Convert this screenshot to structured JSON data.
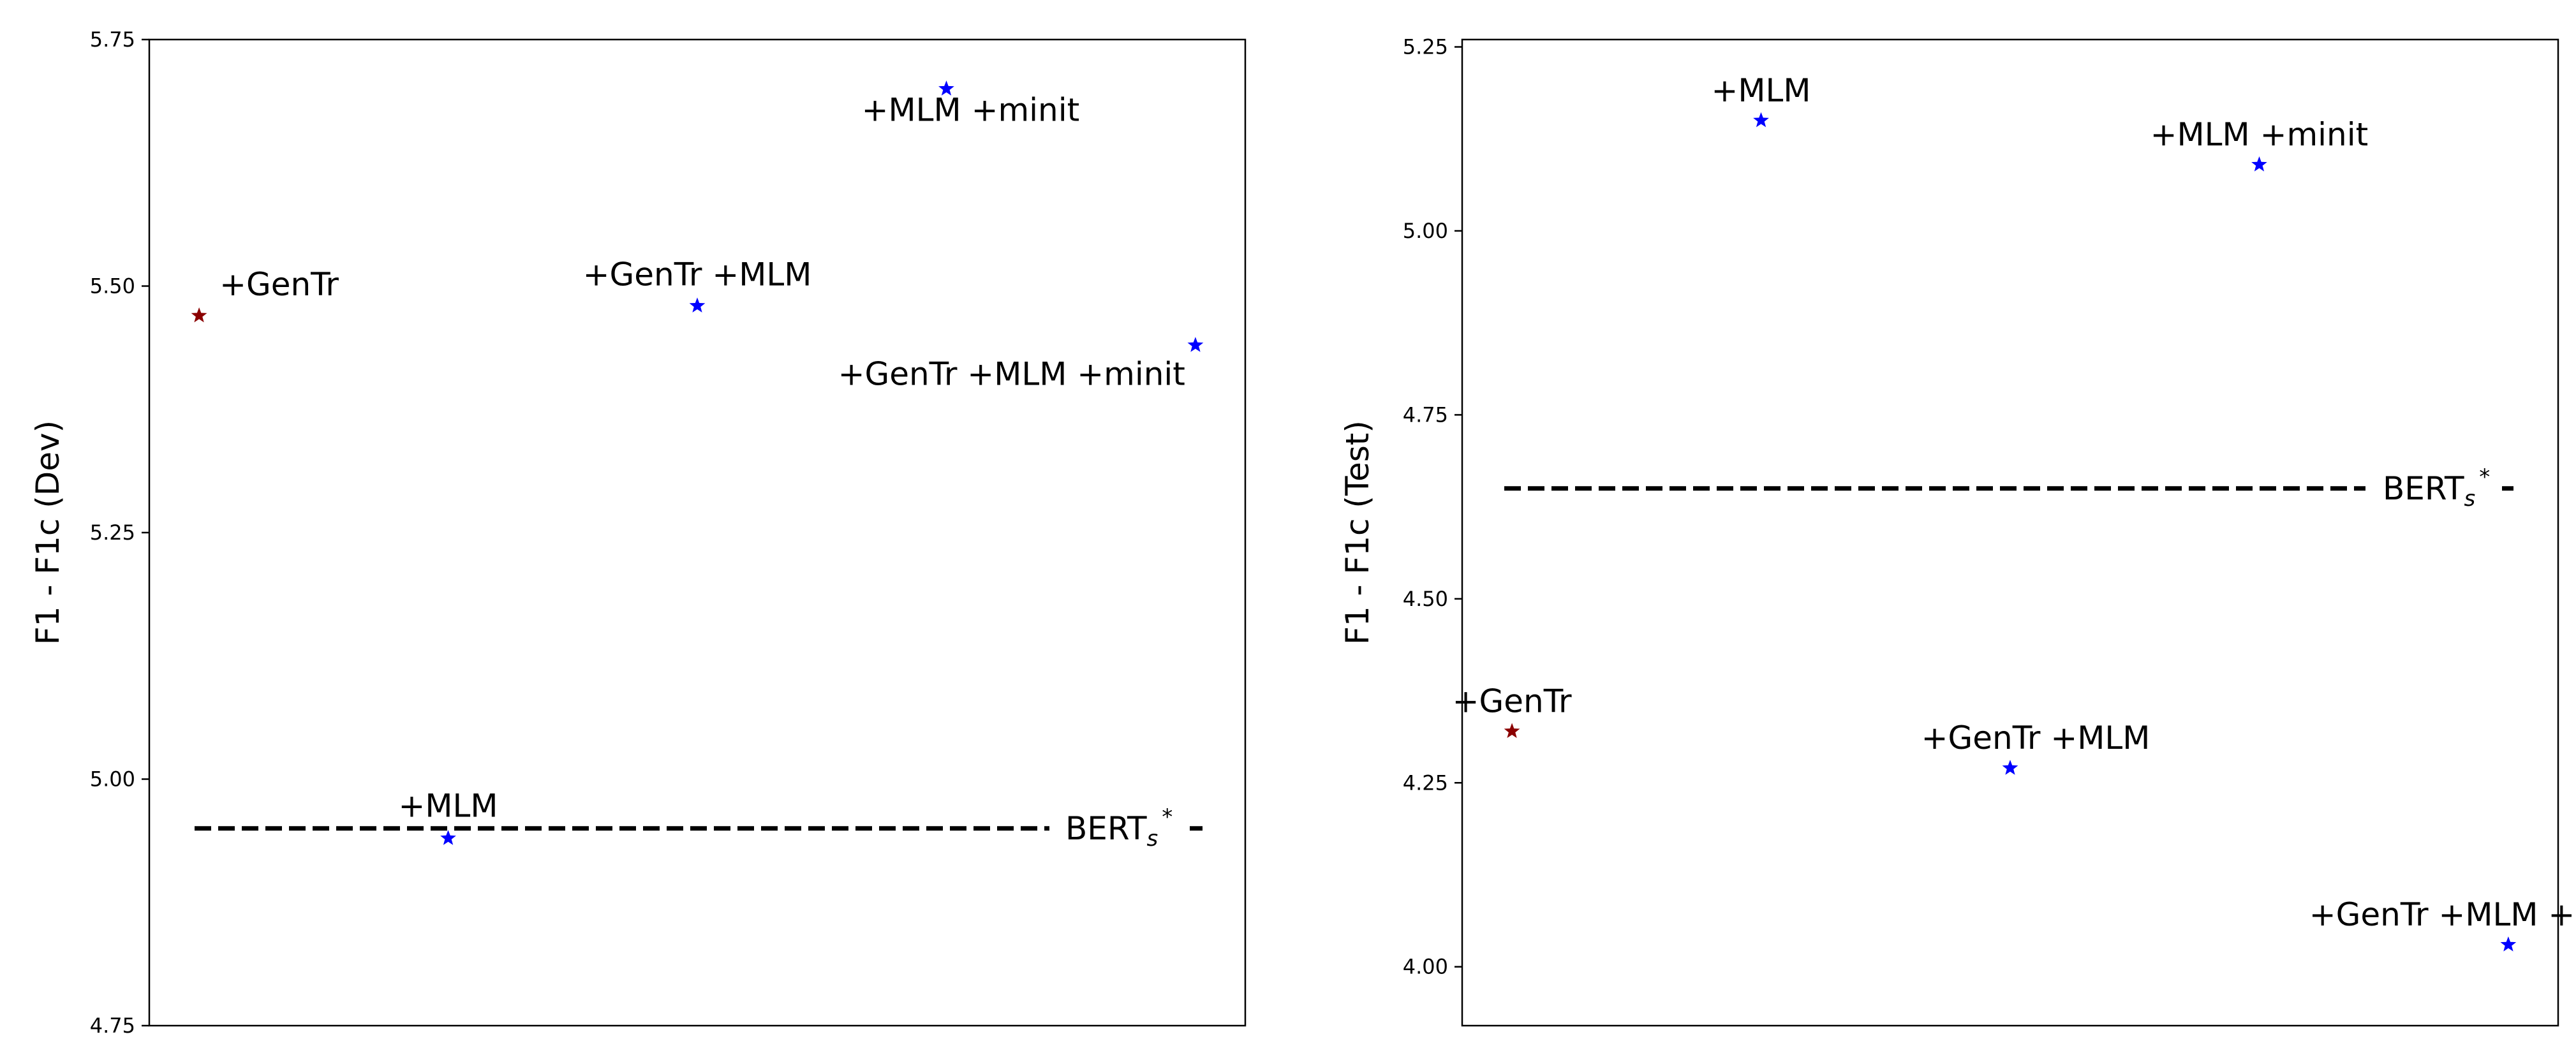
{
  "chart_data": [
    {
      "type": "scatter",
      "ylabel": "F1 - F1c (Dev)",
      "ylim": [
        4.75,
        5.75
      ],
      "xlim": [
        -0.2,
        4.2
      ],
      "yticks": [
        "4.75",
        "5.00",
        "5.25",
        "5.50",
        "5.75"
      ],
      "grid": false,
      "points": [
        {
          "label": "+GenTr",
          "x": 0,
          "y": 5.47,
          "color": "#8b0000"
        },
        {
          "label": "+MLM",
          "x": 1,
          "y": 4.94,
          "color": "#0000ff"
        },
        {
          "label": "+GenTr +MLM",
          "x": 2,
          "y": 5.48,
          "color": "#0000ff"
        },
        {
          "label": "+MLM +minit",
          "x": 3,
          "y": 5.7,
          "color": "#0000ff"
        },
        {
          "label": "+GenTr +MLM +minit",
          "x": 4,
          "y": 5.44,
          "color": "#0000ff"
        }
      ],
      "reference": {
        "label": "BERT",
        "label_sub": "s",
        "label_sup": "*",
        "y": 4.95
      }
    },
    {
      "type": "scatter",
      "ylabel": "F1 - F1c (Test)",
      "ylim": [
        3.92,
        5.26
      ],
      "xlim": [
        -0.2,
        4.2
      ],
      "yticks": [
        "4.00",
        "4.25",
        "4.50",
        "4.75",
        "5.00",
        "5.25"
      ],
      "grid": false,
      "points": [
        {
          "label": "+GenTr",
          "x": 0,
          "y": 4.32,
          "color": "#8b0000"
        },
        {
          "label": "+MLM",
          "x": 1,
          "y": 5.15,
          "color": "#0000ff"
        },
        {
          "label": "+GenTr +MLM",
          "x": 2,
          "y": 4.27,
          "color": "#0000ff"
        },
        {
          "label": "+MLM +minit",
          "x": 3,
          "y": 5.09,
          "color": "#0000ff"
        },
        {
          "label": "+GenTr +MLM +minit",
          "x": 4,
          "y": 4.03,
          "color": "#0000ff"
        }
      ],
      "reference": {
        "label": "BERT",
        "label_sub": "s",
        "label_sup": "*",
        "y": 4.65
      }
    }
  ]
}
